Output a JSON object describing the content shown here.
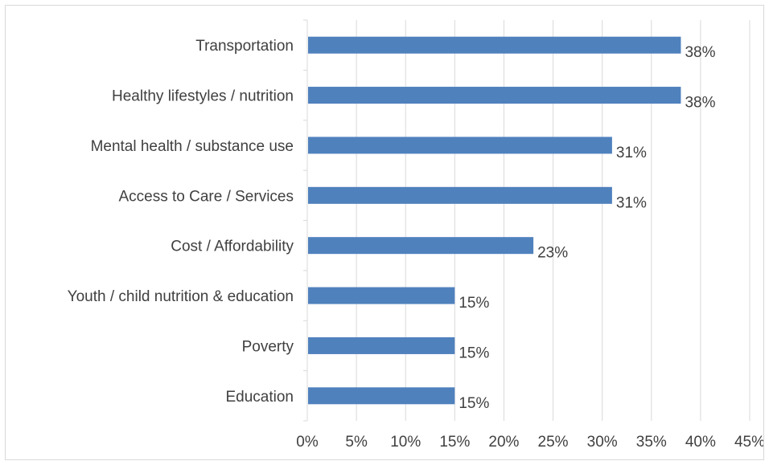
{
  "chart_data": {
    "type": "bar",
    "orientation": "horizontal",
    "title": "",
    "xlabel": "",
    "ylabel": "",
    "categories": [
      "Transportation",
      "Healthy lifestyles / nutrition",
      "Mental health / substance use",
      "Access to Care / Services",
      "Cost / Affordability",
      "Youth / child nutrition & education",
      "Poverty",
      "Education"
    ],
    "values": [
      38,
      38,
      31,
      31,
      23,
      15,
      15,
      15
    ],
    "value_labels": [
      "38%",
      "38%",
      "31%",
      "31%",
      "23%",
      "15%",
      "15%",
      "15%"
    ],
    "xlim": [
      0,
      45
    ],
    "x_ticks": [
      0,
      5,
      10,
      15,
      20,
      25,
      30,
      35,
      40,
      45
    ],
    "x_tick_labels": [
      "0%",
      "5%",
      "10%",
      "15%",
      "20%",
      "25%",
      "30%",
      "35%",
      "40%",
      "45%"
    ],
    "grid": "vertical",
    "legend": "none",
    "bar_color": "#4f81bd",
    "grid_color": "#d9d9d9",
    "text_color": "#404040"
  }
}
